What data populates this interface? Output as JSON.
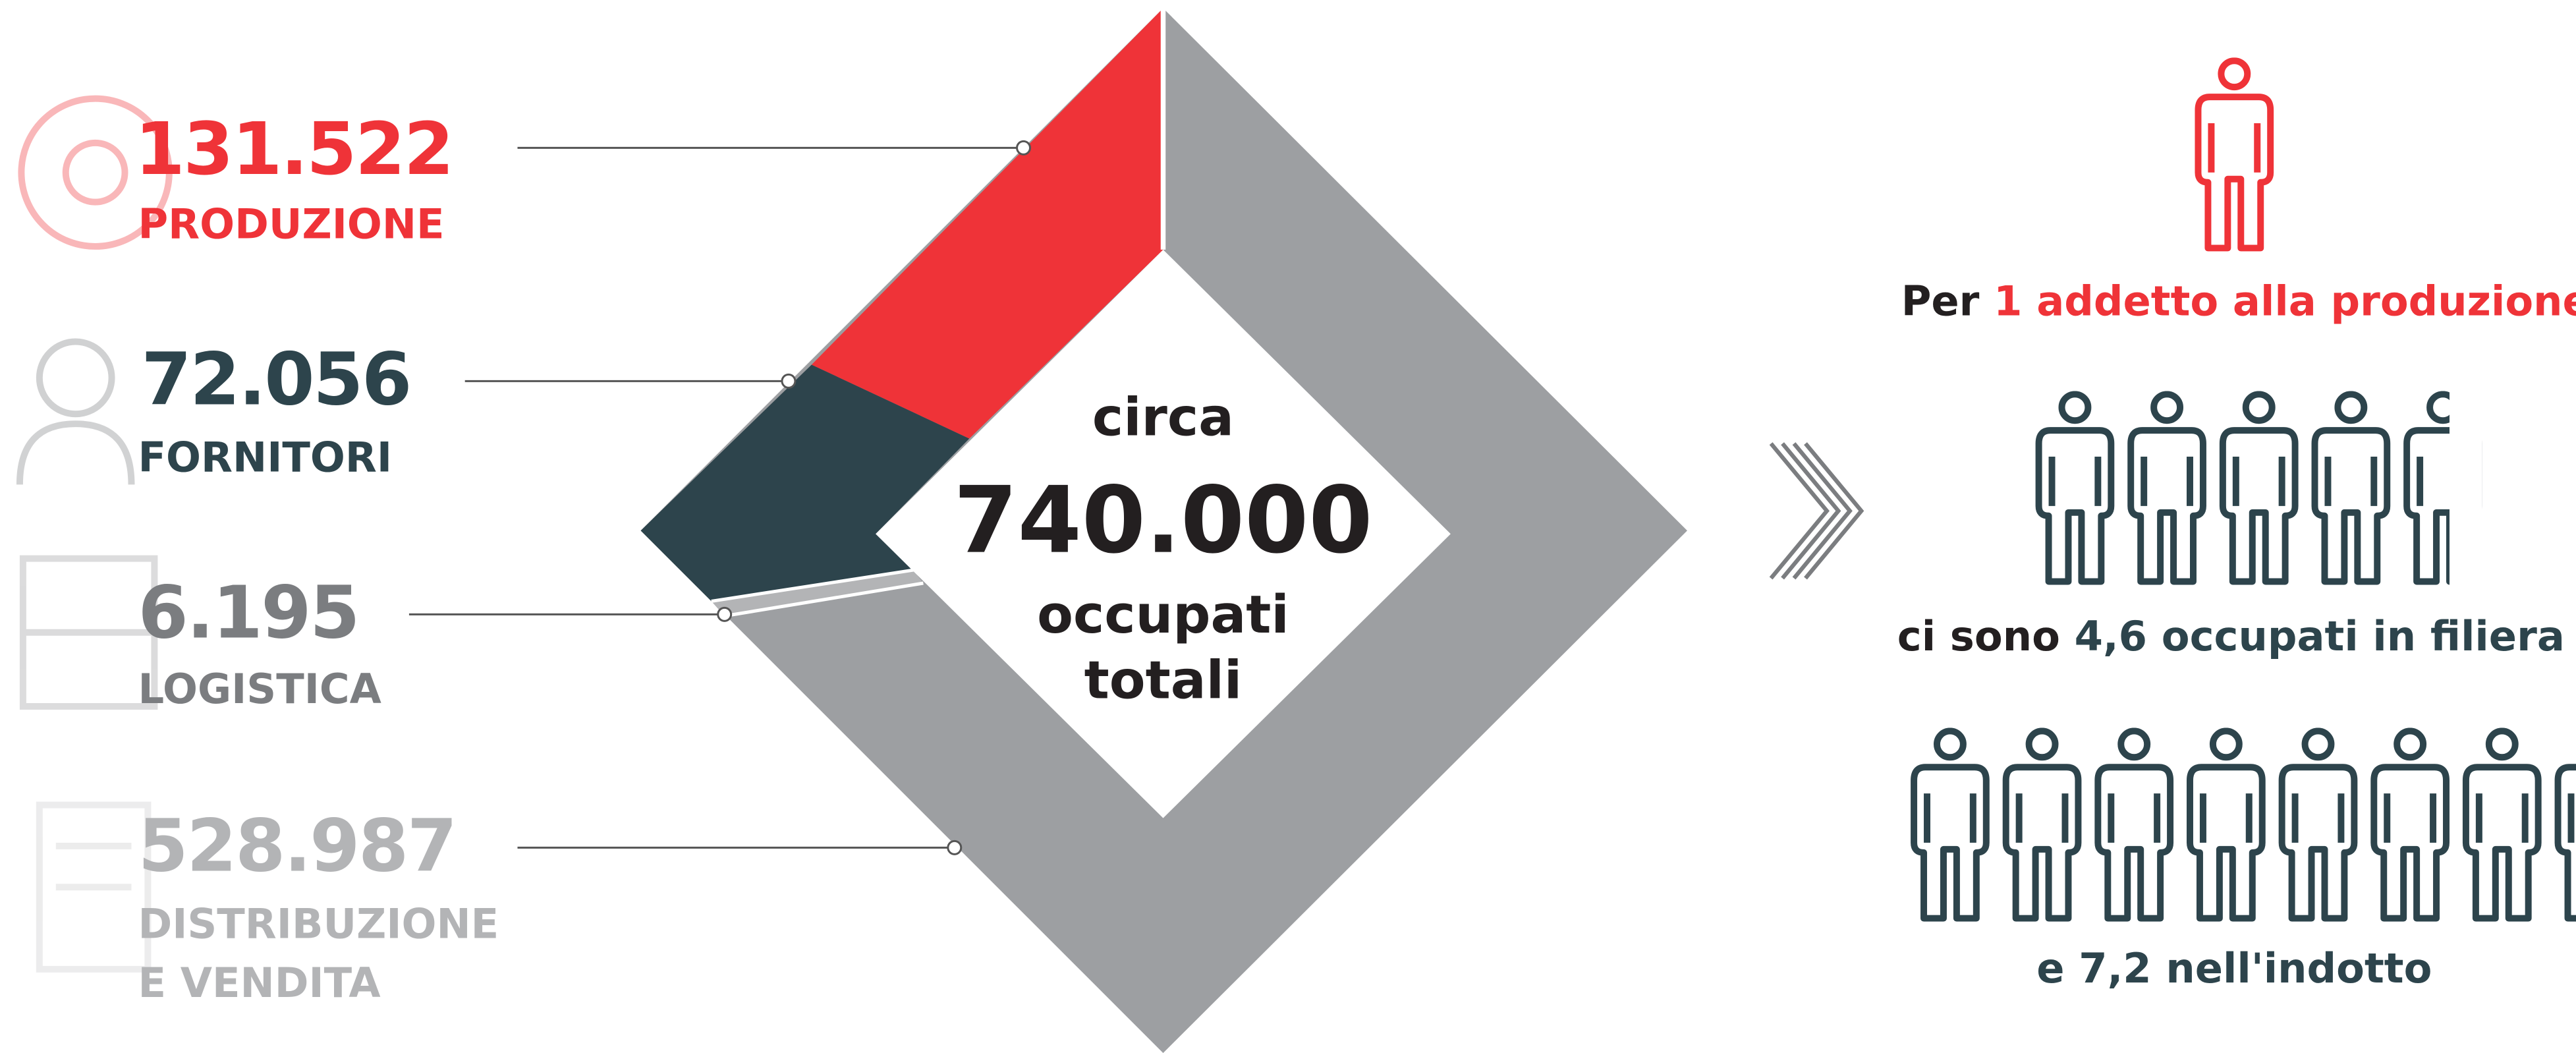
{
  "left_items": [
    {
      "value": "131.522",
      "label_lines": [
        "PRODUZIONE"
      ]
    },
    {
      "value": "72.056",
      "label_lines": [
        "FORNITORI"
      ]
    },
    {
      "value": "6.195",
      "label_lines": [
        "LOGISTICA"
      ]
    },
    {
      "value": "528.987",
      "label_lines": [
        "DISTRIBUZIONE",
        "E VENDITA"
      ]
    }
  ],
  "center": {
    "pre": "circa",
    "total": "740.000",
    "post": [
      "occupati",
      "totali"
    ]
  },
  "statements": [
    {
      "parts": [
        "Per",
        "1 addetto alla produzione"
      ]
    },
    {
      "parts": [
        "ci sono",
        "4,6 occupati in filiera"
      ]
    },
    {
      "parts": [
        "e 7,2 nell'indotto"
      ]
    }
  ]
}
